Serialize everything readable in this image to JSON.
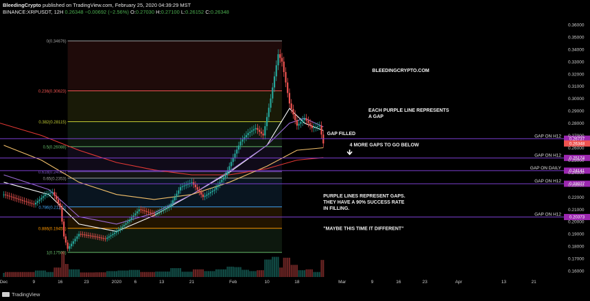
{
  "header": {
    "author": "BleedingCrypto",
    "published": "published on TradingView.com, February 25, 2020 04:39:29 MST",
    "symbol": "BINANCE:XRPUSDT, 12H",
    "last": "0.26348",
    "change": "−0.00692 (−2.56%)",
    "open_label": "O:",
    "open": "0.27030",
    "high_label": "H:",
    "high": "0.27100",
    "low_label": "L:",
    "low": "0.26152",
    "close_label": "C:",
    "close": "0.26348"
  },
  "footer": {
    "brand": "TradingView"
  },
  "colors": {
    "background": "#000000",
    "up": "#26a69a",
    "down": "#ef5350",
    "gap_line": "#7b3fd1",
    "gap_badge": "#9c27b0",
    "price_badge": "#ef5350",
    "ma_white": "#ffffff",
    "ma_yellow": "#f5c26b",
    "ma_red": "#e53935"
  },
  "chart_data": {
    "type": "candlestick",
    "y_axis_side": "right",
    "ylim": [
      0.155,
      0.365
    ],
    "y_ticks": [
      0.16,
      0.17,
      0.18,
      0.19,
      0.2,
      0.21,
      0.22,
      0.23,
      0.24,
      0.25,
      0.26,
      0.27,
      0.28,
      0.29,
      0.3,
      0.31,
      0.32,
      0.33,
      0.34,
      0.35,
      0.36
    ],
    "y_tick_labels": [
      "0.16000",
      "0.17000",
      "0.18000",
      "0.19000",
      "0.20000",
      "0.21000",
      "0.22000",
      "0.23000",
      "0.24000",
      "0.25000",
      "0.26000",
      "0.27000",
      "0.28000",
      "0.29000",
      "0.30000",
      "0.31000",
      "0.32000",
      "0.33000",
      "0.34000",
      "0.35000",
      "0.36000"
    ],
    "x_tick_labels": [
      "Dec",
      "9",
      "16",
      "23",
      "2020",
      "6",
      "13",
      "21",
      "Feb",
      "10",
      "18",
      "Mar",
      "9",
      "16",
      "23",
      "Apr",
      "13",
      "21"
    ],
    "x_tick_days": [
      0,
      8,
      15,
      22,
      30,
      35,
      42,
      50,
      61,
      70,
      78,
      90,
      98,
      105,
      112,
      121,
      133,
      141
    ],
    "x_range_days": [
      -1,
      149
    ],
    "price_series": [
      {
        "day": 0,
        "price": 0.222
      },
      {
        "day": 4,
        "price": 0.218
      },
      {
        "day": 8,
        "price": 0.214
      },
      {
        "day": 11,
        "price": 0.222
      },
      {
        "day": 13,
        "price": 0.224
      },
      {
        "day": 15,
        "price": 0.212
      },
      {
        "day": 16,
        "price": 0.188
      },
      {
        "day": 17,
        "price": 0.178
      },
      {
        "day": 20,
        "price": 0.19
      },
      {
        "day": 24,
        "price": 0.188
      },
      {
        "day": 27,
        "price": 0.186
      },
      {
        "day": 30,
        "price": 0.192
      },
      {
        "day": 33,
        "price": 0.2
      },
      {
        "day": 36,
        "price": 0.21
      },
      {
        "day": 40,
        "price": 0.206
      },
      {
        "day": 44,
        "price": 0.212
      },
      {
        "day": 47,
        "price": 0.228
      },
      {
        "day": 50,
        "price": 0.232
      },
      {
        "day": 53,
        "price": 0.22
      },
      {
        "day": 56,
        "price": 0.226
      },
      {
        "day": 59,
        "price": 0.238
      },
      {
        "day": 61,
        "price": 0.252
      },
      {
        "day": 63,
        "price": 0.265
      },
      {
        "day": 65,
        "price": 0.272
      },
      {
        "day": 67,
        "price": 0.276
      },
      {
        "day": 69,
        "price": 0.27
      },
      {
        "day": 71,
        "price": 0.3
      },
      {
        "day": 73,
        "price": 0.336
      },
      {
        "day": 74,
        "price": 0.33
      },
      {
        "day": 76,
        "price": 0.296
      },
      {
        "day": 78,
        "price": 0.278
      },
      {
        "day": 80,
        "price": 0.284
      },
      {
        "day": 82,
        "price": 0.276
      },
      {
        "day": 84,
        "price": 0.278
      },
      {
        "day": 85,
        "price": 0.2635
      }
    ],
    "moving_averages": [
      {
        "color": "#ffffff",
        "points": [
          {
            "day": 0,
            "price": 0.232
          },
          {
            "day": 12,
            "price": 0.222
          },
          {
            "day": 20,
            "price": 0.198
          },
          {
            "day": 30,
            "price": 0.192
          },
          {
            "day": 40,
            "price": 0.205
          },
          {
            "day": 50,
            "price": 0.222
          },
          {
            "day": 60,
            "price": 0.24
          },
          {
            "day": 70,
            "price": 0.262
          },
          {
            "day": 76,
            "price": 0.292
          },
          {
            "day": 80,
            "price": 0.28
          },
          {
            "day": 85,
            "price": 0.274
          }
        ]
      },
      {
        "color": "#9c6cd8",
        "points": [
          {
            "day": 0,
            "price": 0.238
          },
          {
            "day": 12,
            "price": 0.226
          },
          {
            "day": 20,
            "price": 0.204
          },
          {
            "day": 30,
            "price": 0.198
          },
          {
            "day": 40,
            "price": 0.207
          },
          {
            "day": 50,
            "price": 0.222
          },
          {
            "day": 60,
            "price": 0.241
          },
          {
            "day": 70,
            "price": 0.262
          },
          {
            "day": 76,
            "price": 0.28
          },
          {
            "day": 80,
            "price": 0.284
          },
          {
            "day": 85,
            "price": 0.277
          }
        ]
      },
      {
        "color": "#f5c26b",
        "points": [
          {
            "day": 0,
            "price": 0.262
          },
          {
            "day": 10,
            "price": 0.25
          },
          {
            "day": 20,
            "price": 0.232
          },
          {
            "day": 30,
            "price": 0.222
          },
          {
            "day": 40,
            "price": 0.218
          },
          {
            "day": 50,
            "price": 0.222
          },
          {
            "day": 60,
            "price": 0.232
          },
          {
            "day": 70,
            "price": 0.245
          },
          {
            "day": 78,
            "price": 0.258
          },
          {
            "day": 85,
            "price": 0.26
          }
        ]
      },
      {
        "color": "#e53935",
        "points": [
          {
            "day": -1,
            "price": 0.28
          },
          {
            "day": 10,
            "price": 0.27
          },
          {
            "day": 20,
            "price": 0.258
          },
          {
            "day": 30,
            "price": 0.248
          },
          {
            "day": 40,
            "price": 0.242
          },
          {
            "day": 50,
            "price": 0.238
          },
          {
            "day": 60,
            "price": 0.238
          },
          {
            "day": 70,
            "price": 0.243
          },
          {
            "day": 78,
            "price": 0.25
          },
          {
            "day": 85,
            "price": 0.252
          }
        ]
      }
    ],
    "fibonacci": {
      "start_day": 17,
      "end_day": 74,
      "levels": [
        {
          "label": "0(0.34676)",
          "price": 0.34676,
          "color": "#9e9e9e"
        },
        {
          "label": "0.236(0.30623)",
          "price": 0.30623,
          "color": "#ef5350"
        },
        {
          "label": "0.382(0.28115)",
          "price": 0.28115,
          "color": "#c0ca33"
        },
        {
          "label": "0.5(0.26088)",
          "price": 0.26088,
          "color": "#66bb6a"
        },
        {
          "label": "0.618(0.24061)",
          "price": 0.24061,
          "color": "#7e57c2"
        },
        {
          "label": "0.65(0.2353)",
          "price": 0.2353,
          "color": "#9e9e9e"
        },
        {
          "label": "0.786(0.21193)",
          "price": 0.21193,
          "color": "#42a5f5"
        },
        {
          "label": "0.886(0.19455)",
          "price": 0.19455,
          "color": "#ff9800"
        },
        {
          "label": "1(0.17500)",
          "price": 0.175,
          "color": "#66bb6a"
        }
      ]
    },
    "gap_lines": [
      {
        "price": 0.26737,
        "label": "GAP ON H12",
        "badge": "0.26737"
      },
      {
        "price": 0.25174,
        "label": "GAP ON H12",
        "badge": "0.25174"
      },
      {
        "price": 0.24141,
        "label": "GAP ON DAILY",
        "badge": "0.24141"
      },
      {
        "price": 0.23077,
        "label": "GAP ON H12",
        "badge": "0.23077"
      },
      {
        "price": 0.20373,
        "label": "GAP ON H12",
        "badge": "0.20373"
      }
    ],
    "last_price": {
      "price": 0.26348,
      "badge": "0.26348"
    },
    "annotations": [
      {
        "text": "BLEEDINGCRYPTO.COM",
        "day": 98,
        "price": 0.3215
      },
      {
        "text": "EACH PURPLE LINE REPRESENTS",
        "day": 97,
        "price": 0.2893
      },
      {
        "text": "A GAP",
        "day": 97,
        "price": 0.2843
      },
      {
        "text": "GAP FILLED",
        "day": 86,
        "price": 0.2702
      },
      {
        "text": "4 MORE GAPS TO GO BELOW",
        "day": 92,
        "price": 0.2612
      },
      {
        "text": "PURPLE LINES REPRESENT GAPS.",
        "day": 85,
        "price": 0.2195
      },
      {
        "text": "THEY HAVE A 90% SUCCESS RATE",
        "day": 85,
        "price": 0.2145
      },
      {
        "text": "IN FILLING.",
        "day": 85,
        "price": 0.2095
      },
      {
        "text": "\"MAYBE THIS TIME IT DIFFERENT\"",
        "day": 85,
        "price": 0.1932
      }
    ]
  }
}
